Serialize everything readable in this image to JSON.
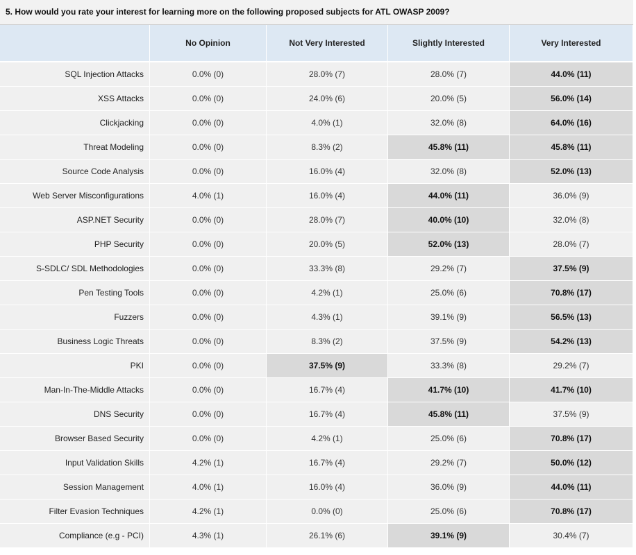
{
  "question": "5. How would you rate your interest for learning more on the following proposed subjects for ATL OWASP 2009?",
  "columns": [
    "",
    "No Opinion",
    "Not Very Interested",
    "Slightly Interested",
    "Very Interested"
  ],
  "rows": [
    {
      "label": "SQL Injection Attacks",
      "cells": [
        "0.0% (0)",
        "28.0% (7)",
        "28.0% (7)",
        "44.0% (11)"
      ],
      "highlight": [
        3
      ]
    },
    {
      "label": "XSS Attacks",
      "cells": [
        "0.0% (0)",
        "24.0% (6)",
        "20.0% (5)",
        "56.0% (14)"
      ],
      "highlight": [
        3
      ]
    },
    {
      "label": "Clickjacking",
      "cells": [
        "0.0% (0)",
        "4.0% (1)",
        "32.0% (8)",
        "64.0% (16)"
      ],
      "highlight": [
        3
      ]
    },
    {
      "label": "Threat Modeling",
      "cells": [
        "0.0% (0)",
        "8.3% (2)",
        "45.8% (11)",
        "45.8% (11)"
      ],
      "highlight": [
        2,
        3
      ]
    },
    {
      "label": "Source Code Analysis",
      "cells": [
        "0.0% (0)",
        "16.0% (4)",
        "32.0% (8)",
        "52.0% (13)"
      ],
      "highlight": [
        3
      ]
    },
    {
      "label": "Web Server Misconfigurations",
      "cells": [
        "4.0% (1)",
        "16.0% (4)",
        "44.0% (11)",
        "36.0% (9)"
      ],
      "highlight": [
        2
      ]
    },
    {
      "label": "ASP.NET Security",
      "cells": [
        "0.0% (0)",
        "28.0% (7)",
        "40.0% (10)",
        "32.0% (8)"
      ],
      "highlight": [
        2
      ]
    },
    {
      "label": "PHP Security",
      "cells": [
        "0.0% (0)",
        "20.0% (5)",
        "52.0% (13)",
        "28.0% (7)"
      ],
      "highlight": [
        2
      ]
    },
    {
      "label": "S-SDLC/ SDL Methodologies",
      "cells": [
        "0.0% (0)",
        "33.3% (8)",
        "29.2% (7)",
        "37.5% (9)"
      ],
      "highlight": [
        3
      ]
    },
    {
      "label": "Pen Testing Tools",
      "cells": [
        "0.0% (0)",
        "4.2% (1)",
        "25.0% (6)",
        "70.8% (17)"
      ],
      "highlight": [
        3
      ]
    },
    {
      "label": "Fuzzers",
      "cells": [
        "0.0% (0)",
        "4.3% (1)",
        "39.1% (9)",
        "56.5% (13)"
      ],
      "highlight": [
        3
      ]
    },
    {
      "label": "Business Logic Threats",
      "cells": [
        "0.0% (0)",
        "8.3% (2)",
        "37.5% (9)",
        "54.2% (13)"
      ],
      "highlight": [
        3
      ]
    },
    {
      "label": "PKI",
      "cells": [
        "0.0% (0)",
        "37.5% (9)",
        "33.3% (8)",
        "29.2% (7)"
      ],
      "highlight": [
        1
      ]
    },
    {
      "label": "Man-In-The-Middle Attacks",
      "cells": [
        "0.0% (0)",
        "16.7% (4)",
        "41.7% (10)",
        "41.7% (10)"
      ],
      "highlight": [
        2,
        3
      ]
    },
    {
      "label": "DNS Security",
      "cells": [
        "0.0% (0)",
        "16.7% (4)",
        "45.8% (11)",
        "37.5% (9)"
      ],
      "highlight": [
        2
      ]
    },
    {
      "label": "Browser Based Security",
      "cells": [
        "0.0% (0)",
        "4.2% (1)",
        "25.0% (6)",
        "70.8% (17)"
      ],
      "highlight": [
        3
      ]
    },
    {
      "label": "Input Validation Skills",
      "cells": [
        "4.2% (1)",
        "16.7% (4)",
        "29.2% (7)",
        "50.0% (12)"
      ],
      "highlight": [
        3
      ]
    },
    {
      "label": "Session Management",
      "cells": [
        "4.0% (1)",
        "16.0% (4)",
        "36.0% (9)",
        "44.0% (11)"
      ],
      "highlight": [
        3
      ]
    },
    {
      "label": "Filter Evasion Techniques",
      "cells": [
        "4.2% (1)",
        "0.0% (0)",
        "25.0% (6)",
        "70.8% (17)"
      ],
      "highlight": [
        3
      ]
    },
    {
      "label": "Compliance (e.g - PCI)",
      "cells": [
        "4.3% (1)",
        "26.1% (6)",
        "39.1% (9)",
        "30.4% (7)"
      ],
      "highlight": [
        2
      ]
    }
  ]
}
